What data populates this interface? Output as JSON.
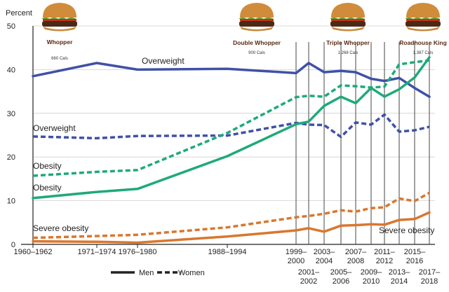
{
  "chart_data": {
    "type": "line",
    "ylabel": "Percent",
    "ylim": [
      0,
      50
    ],
    "yticks": [
      "0",
      "10",
      "20",
      "30",
      "40",
      "50"
    ],
    "x_periods": [
      "1960–1962",
      "1971–1974",
      "1976–1980",
      "1988–1994",
      "1999–2000",
      "2001–2002",
      "2003–2004",
      "2005–2006",
      "2007–2008",
      "2009–2010",
      "2011–2012",
      "2013–2014",
      "2015–2016",
      "2017–2018"
    ],
    "x_tick_labels": [
      {
        "lines": [
          "1960–1962"
        ],
        "row": "top"
      },
      {
        "lines": [
          "1971–1974"
        ],
        "row": "top"
      },
      {
        "lines": [
          "1976–1980"
        ],
        "row": "top"
      },
      {
        "lines": [
          "1988–1994"
        ],
        "row": "top"
      },
      {
        "lines": [
          "1999–",
          "2000"
        ],
        "row": "top"
      },
      {
        "lines": [
          "2001–",
          "2002"
        ],
        "row": "bottom"
      },
      {
        "lines": [
          "2003–",
          "2004"
        ],
        "row": "top"
      },
      {
        "lines": [
          "2005–",
          "2006"
        ],
        "row": "bottom"
      },
      {
        "lines": [
          "2007–",
          "2008"
        ],
        "row": "top"
      },
      {
        "lines": [
          "2009–",
          "2010"
        ],
        "row": "bottom"
      },
      {
        "lines": [
          "2011–",
          "2012"
        ],
        "row": "top"
      },
      {
        "lines": [
          "2013–",
          "2014"
        ],
        "row": "bottom"
      },
      {
        "lines": [
          "2015–",
          "2016"
        ],
        "row": "top"
      },
      {
        "lines": [
          "2017–",
          "2018"
        ],
        "row": "bottom"
      }
    ],
    "series": [
      {
        "label": "Overweight",
        "sex": "Men",
        "style": "solid",
        "color": "#3f51a6",
        "values": [
          38.5,
          41.5,
          40.0,
          40.2,
          39.2,
          41.5,
          39.4,
          39.7,
          39.4,
          37.9,
          37.4,
          38.1,
          35.8,
          33.8
        ]
      },
      {
        "label": "Overweight",
        "sex": "Women",
        "style": "dashed",
        "color": "#3f51a6",
        "values": [
          24.7,
          24.3,
          24.8,
          24.9,
          27.8,
          27.4,
          27.3,
          24.6,
          27.9,
          27.4,
          29.7,
          25.8,
          26.1,
          26.9
        ]
      },
      {
        "label": "Obesity",
        "sex": "Women",
        "style": "dashed",
        "color": "#1fa97a",
        "values": [
          15.7,
          16.6,
          17.0,
          25.5,
          33.7,
          34.0,
          33.8,
          36.4,
          36.2,
          35.9,
          36.1,
          41.2,
          41.7,
          42.1
        ]
      },
      {
        "label": "Obesity",
        "sex": "Men",
        "style": "solid",
        "color": "#1fa97a",
        "values": [
          10.6,
          12.0,
          12.7,
          20.2,
          27.5,
          28.1,
          31.7,
          33.8,
          32.3,
          35.8,
          33.8,
          35.5,
          38.2,
          42.8
        ]
      },
      {
        "label": "Severe obesity",
        "sex": "Women",
        "style": "dashed",
        "color": "#d9772e",
        "values": [
          1.5,
          1.9,
          2.2,
          3.9,
          6.2,
          6.5,
          7.0,
          7.8,
          7.5,
          8.3,
          8.5,
          10.5,
          9.9,
          11.8
        ]
      },
      {
        "label": "Severe obesity",
        "sex": "Men",
        "style": "solid",
        "color": "#d9772e",
        "values": [
          0.7,
          0.6,
          0.4,
          1.8,
          3.2,
          3.7,
          2.9,
          4.3,
          4.4,
          4.6,
          4.5,
          5.6,
          5.8,
          7.3
        ]
      }
    ],
    "series_labels": [
      {
        "text": "Overweight",
        "series_index": 0
      },
      {
        "text": "Overweight",
        "series_index": 1
      },
      {
        "text": "Obesity",
        "series_index": 2
      },
      {
        "text": "Obesity",
        "series_index": 3
      },
      {
        "text": "Severe obesity",
        "series_index": 4
      },
      {
        "text": "Severe obesity",
        "series_index": 5
      }
    ],
    "legend": {
      "placement": "bottom",
      "items": [
        {
          "label": "Men",
          "style": "solid"
        },
        {
          "label": "Women",
          "style": "dashed"
        }
      ]
    },
    "annotations": [
      {
        "name": "Whopper",
        "calories": "660 Cals",
        "period_index": 1
      },
      {
        "name": "Double Whopper",
        "calories": "900 Cals",
        "period_index": 5
      },
      {
        "name": "Triple Whopper",
        "calories": "1,268 Cals",
        "period_index": 8
      },
      {
        "name": "Roadhouse King",
        "calories": "1,387 Cals",
        "period_index": 13
      }
    ]
  }
}
